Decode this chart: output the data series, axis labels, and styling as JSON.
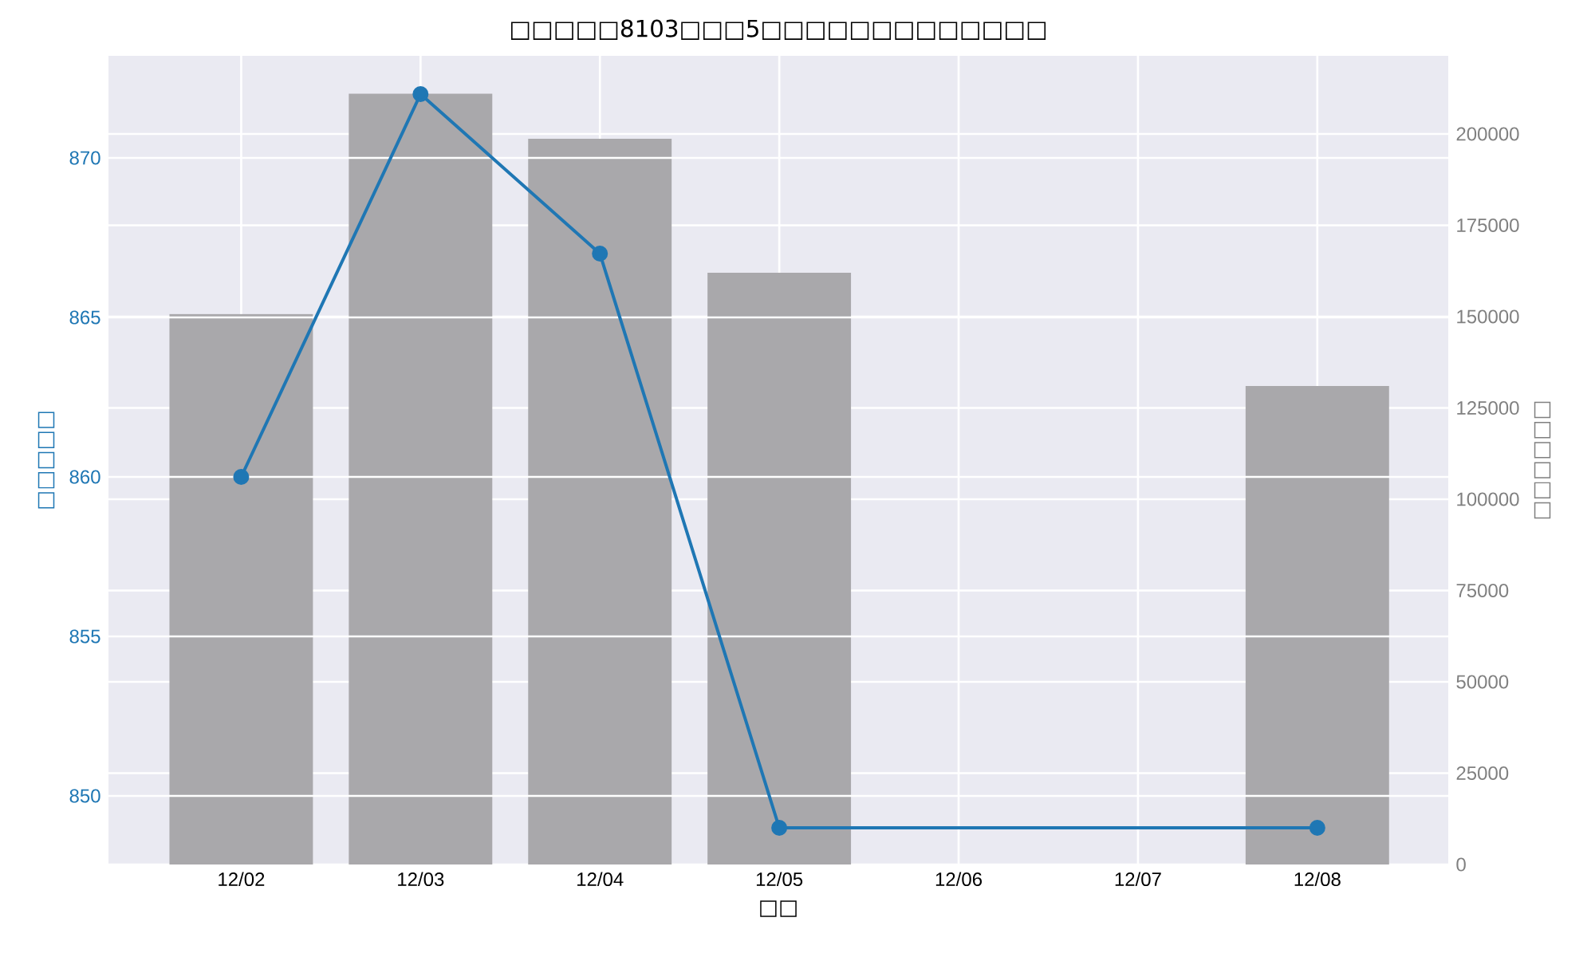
{
  "chart_data": {
    "type": "bar",
    "title": "□□□□□8103□□□5□□□□□□□□□□□□□",
    "xlabel": "□□",
    "ylabel": "□□□□□",
    "y2label": "□□□□□□",
    "categories": [
      "12/02",
      "12/03",
      "12/04",
      "12/05",
      "12/06",
      "12/07",
      "12/08"
    ],
    "ylim": [
      847.85,
      873.2
    ],
    "yticks": [
      850,
      855,
      860,
      865,
      870
    ],
    "y2lim": [
      0,
      221400
    ],
    "y2ticks": [
      0,
      25000,
      50000,
      75000,
      100000,
      125000,
      150000,
      175000,
      200000
    ],
    "grid": true,
    "marker": "circle",
    "series": [
      {
        "axis": "y2",
        "color": "#a9a8ab",
        "values": [
          150700,
          211000,
          198700,
          162000,
          null,
          null,
          131000
        ]
      },
      {
        "type": "line",
        "color": "#1f77b4",
        "values": [
          860,
          872,
          867,
          849,
          null,
          null,
          849
        ]
      }
    ]
  }
}
